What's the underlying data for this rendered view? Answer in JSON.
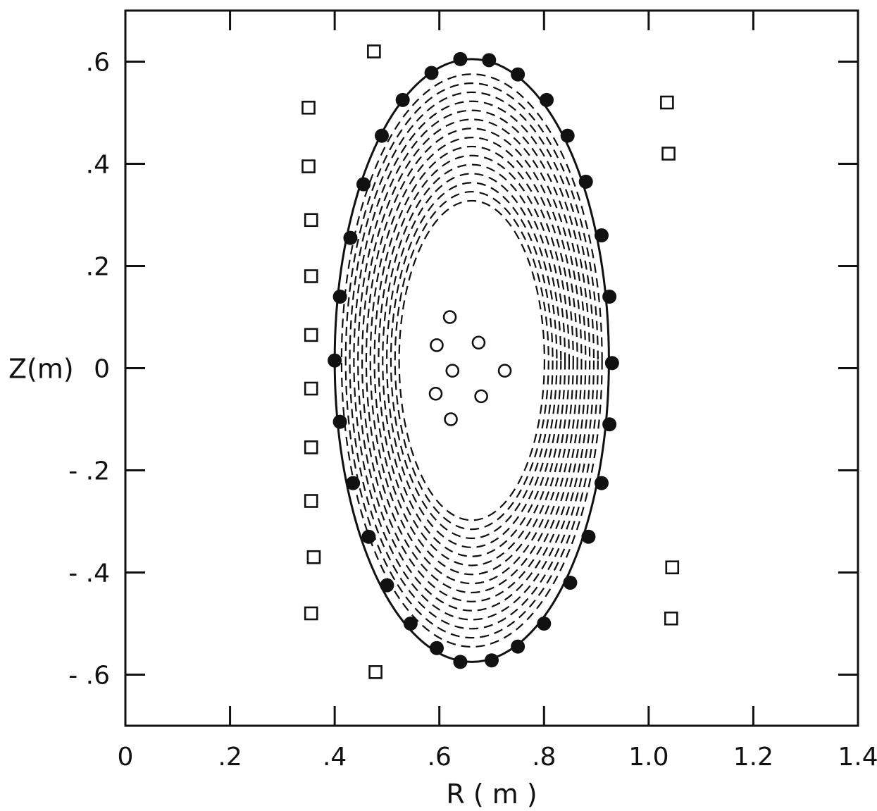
{
  "chart_data": {
    "type": "scatter",
    "title": "",
    "xlabel": "R ( m )",
    "ylabel": "Z(m)",
    "xlim": [
      0,
      1.4
    ],
    "ylim": [
      -0.7,
      0.7
    ],
    "x_ticks": [
      0,
      0.2,
      0.4,
      0.6,
      0.8,
      1.0,
      1.2,
      1.4
    ],
    "x_tick_labels": [
      "0",
      ".2",
      ".4",
      ".6",
      ".8",
      "1.0",
      "1.2",
      "1.4"
    ],
    "y_ticks": [
      0.6,
      0.4,
      0.2,
      0,
      -0.2,
      -0.4,
      -0.6
    ],
    "y_tick_labels": [
      ".6",
      ".4",
      ".2",
      "0",
      "- .2",
      "- .4",
      "- .6"
    ],
    "grid": false,
    "boundary": {
      "center_r": 0.662,
      "center_z": 0.015,
      "semi_axis_r": 0.262,
      "semi_axis_z": 0.59
    },
    "flux_surfaces": [
      0.95,
      0.92,
      0.89,
      0.86,
      0.83,
      0.8,
      0.77,
      0.74,
      0.71,
      0.68,
      0.65,
      0.62,
      0.59,
      0.56,
      0.53
    ],
    "series": [
      {
        "marker": "filled-circle",
        "points": [
          [
            0.4,
            0.015
          ],
          [
            0.41,
            0.14
          ],
          [
            0.43,
            0.255
          ],
          [
            0.455,
            0.36
          ],
          [
            0.49,
            0.455
          ],
          [
            0.53,
            0.525
          ],
          [
            0.585,
            0.578
          ],
          [
            0.64,
            0.605
          ],
          [
            0.695,
            0.603
          ],
          [
            0.75,
            0.575
          ],
          [
            0.805,
            0.525
          ],
          [
            0.845,
            0.455
          ],
          [
            0.88,
            0.365
          ],
          [
            0.91,
            0.26
          ],
          [
            0.925,
            0.14
          ],
          [
            0.93,
            0.01
          ],
          [
            0.925,
            -0.11
          ],
          [
            0.91,
            -0.225
          ],
          [
            0.885,
            -0.33
          ],
          [
            0.85,
            -0.42
          ],
          [
            0.8,
            -0.5
          ],
          [
            0.75,
            -0.545
          ],
          [
            0.7,
            -0.572
          ],
          [
            0.64,
            -0.575
          ],
          [
            0.595,
            -0.548
          ],
          [
            0.545,
            -0.5
          ],
          [
            0.5,
            -0.425
          ],
          [
            0.465,
            -0.33
          ],
          [
            0.435,
            -0.225
          ],
          [
            0.41,
            -0.105
          ]
        ]
      },
      {
        "marker": "open-square",
        "points": [
          [
            0.475,
            0.62
          ],
          [
            0.35,
            0.51
          ],
          [
            0.35,
            0.395
          ],
          [
            0.355,
            0.29
          ],
          [
            0.355,
            0.18
          ],
          [
            0.355,
            0.065
          ],
          [
            0.355,
            -0.04
          ],
          [
            0.355,
            -0.155
          ],
          [
            0.355,
            -0.26
          ],
          [
            0.36,
            -0.37
          ],
          [
            0.355,
            -0.48
          ],
          [
            0.478,
            -0.595
          ],
          [
            1.035,
            0.52
          ],
          [
            1.038,
            0.42
          ],
          [
            1.045,
            -0.39
          ],
          [
            1.043,
            -0.49
          ]
        ]
      },
      {
        "marker": "open-circle",
        "points": [
          [
            0.62,
            0.1
          ],
          [
            0.595,
            0.045
          ],
          [
            0.675,
            0.05
          ],
          [
            0.625,
            -0.005
          ],
          [
            0.725,
            -0.005
          ],
          [
            0.593,
            -0.05
          ],
          [
            0.68,
            -0.055
          ],
          [
            0.622,
            -0.1
          ]
        ]
      }
    ]
  }
}
